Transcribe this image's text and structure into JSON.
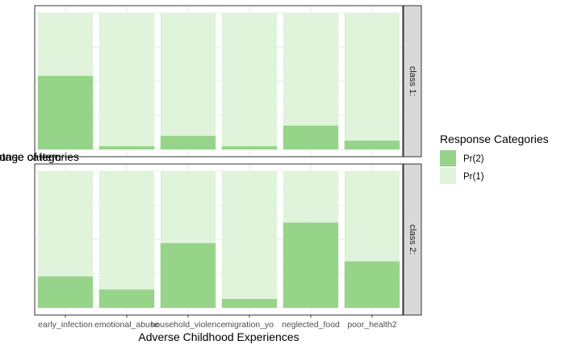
{
  "chart_data": {
    "type": "bar",
    "stacked": true,
    "percent": true,
    "xlabel": "Adverse Childhood Experiences",
    "ylabel": "Percentage of item\nresponse categories",
    "ylim": [
      0,
      1
    ],
    "grid": true,
    "legend_position": "right",
    "categories": [
      "early_infection",
      "emotional_abuse",
      "household_violence",
      "migration_yo",
      "neglected_food",
      "poor_health2"
    ],
    "legend": {
      "title": "Response Categories",
      "entries": [
        {
          "label": "Pr(2)",
          "color": "#96d48a"
        },
        {
          "label": "Pr(1)",
          "color": "#e0f3db"
        }
      ]
    },
    "panels": [
      {
        "label": "class 1:",
        "series": [
          {
            "name": "Pr(2)",
            "color": "#96d48a",
            "values": [
              0.54,
              0.025,
              0.1,
              0.025,
              0.175,
              0.065
            ]
          },
          {
            "name": "Pr(1)",
            "color": "#e0f3db",
            "values": [
              0.46,
              0.975,
              0.9,
              0.975,
              0.825,
              0.935
            ]
          }
        ]
      },
      {
        "label": "class 2:",
        "series": [
          {
            "name": "Pr(2)",
            "color": "#96d48a",
            "values": [
              0.23,
              0.135,
              0.475,
              0.065,
              0.625,
              0.34
            ]
          },
          {
            "name": "Pr(1)",
            "color": "#e0f3db",
            "values": [
              0.77,
              0.865,
              0.525,
              0.935,
              0.375,
              0.66
            ]
          }
        ]
      }
    ]
  }
}
